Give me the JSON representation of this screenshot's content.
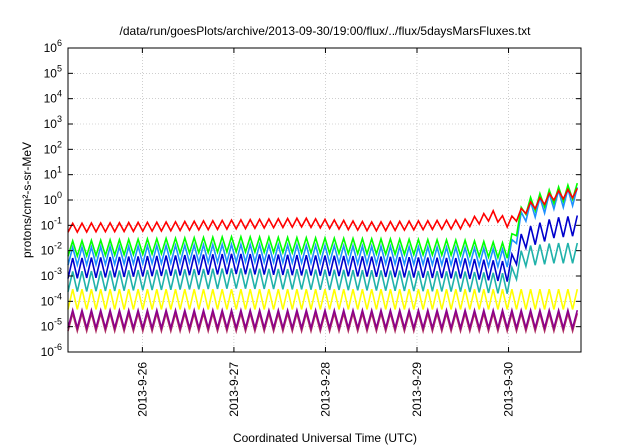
{
  "chart_data": {
    "type": "line",
    "title": "/data/run/goesPlots/archive/2013-09-30/19:00/flux/../flux/5daysMarsFluxes.txt",
    "xlabel": "Coordinated Universal Time (UTC)",
    "ylabel": "protons/cm²-s-sr-MeV",
    "y_scale": "log",
    "ylim": [
      1e-06,
      1000000.0
    ],
    "y_ticks": [
      {
        "value": 1e-06,
        "base": "10",
        "exp": "-6"
      },
      {
        "value": 1e-05,
        "base": "10",
        "exp": "-5"
      },
      {
        "value": 0.0001,
        "base": "10",
        "exp": "-4"
      },
      {
        "value": 0.001,
        "base": "10",
        "exp": "-3"
      },
      {
        "value": 0.01,
        "base": "10",
        "exp": "-2"
      },
      {
        "value": 0.1,
        "base": "10",
        "exp": "-1"
      },
      {
        "value": 1.0,
        "base": "10",
        "exp": "0"
      },
      {
        "value": 10.0,
        "base": "10",
        "exp": "1"
      },
      {
        "value": 100.0,
        "base": "10",
        "exp": "2"
      },
      {
        "value": 1000.0,
        "base": "10",
        "exp": "3"
      },
      {
        "value": 10000.0,
        "base": "10",
        "exp": "4"
      },
      {
        "value": 100000.0,
        "base": "10",
        "exp": "5"
      },
      {
        "value": 1000000.0,
        "base": "10",
        "exp": "6"
      }
    ],
    "xlim": [
      "2013-09-25T04:30",
      "2013-09-30T19:00"
    ],
    "x_ticks": [
      {
        "value": "2013-09-26T00:00",
        "label": "2013-9-26"
      },
      {
        "value": "2013-09-27T00:00",
        "label": "2013-9-27"
      },
      {
        "value": "2013-09-28T00:00",
        "label": "2013-9-28"
      },
      {
        "value": "2013-09-29T00:00",
        "label": "2013-9-29"
      },
      {
        "value": "2013-09-30T00:00",
        "label": "2013-9-30"
      }
    ],
    "grid": true,
    "sawtooth_period_hours": 2.45,
    "series": [
      {
        "color": "#ff0000",
        "baseline": [
          [
            "2013-09-25T04:30",
            0.08
          ],
          [
            "2013-09-26T06:00",
            0.09
          ],
          [
            "2013-09-27T18:00",
            0.13
          ],
          [
            "2013-09-28T12:00",
            0.09
          ],
          [
            "2013-09-29T12:00",
            0.11
          ],
          [
            "2013-09-29T20:00",
            0.25
          ],
          [
            "2013-09-30T00:00",
            0.12
          ],
          [
            "2013-09-30T05:00",
            0.5
          ],
          [
            "2013-09-30T12:00",
            1.5
          ],
          [
            "2013-09-30T19:00",
            2.0
          ]
        ],
        "amplitude_decades": 0.35
      },
      {
        "color": "#00ff00",
        "baseline": [
          [
            "2013-09-25T04:30",
            0.012
          ],
          [
            "2013-09-27T00:00",
            0.018
          ],
          [
            "2013-09-29T12:00",
            0.013
          ],
          [
            "2013-09-30T00:00",
            0.01
          ],
          [
            "2013-09-30T04:00",
            0.5
          ],
          [
            "2013-09-30T12:00",
            1.5
          ],
          [
            "2013-09-30T19:00",
            2.5
          ]
        ],
        "amplitude_decades": 0.6
      },
      {
        "color": "#1e90ff",
        "baseline": [
          [
            "2013-09-25T04:30",
            0.006
          ],
          [
            "2013-09-27T00:00",
            0.008
          ],
          [
            "2013-09-29T12:00",
            0.006
          ],
          [
            "2013-09-30T00:00",
            0.005
          ],
          [
            "2013-09-30T04:00",
            0.3
          ],
          [
            "2013-09-30T12:00",
            1.0
          ],
          [
            "2013-09-30T19:00",
            1.5
          ]
        ],
        "amplitude_decades": 0.7
      },
      {
        "color": "#0000cd",
        "baseline": [
          [
            "2013-09-25T04:30",
            0.002
          ],
          [
            "2013-09-27T00:00",
            0.003
          ],
          [
            "2013-09-29T12:00",
            0.002
          ],
          [
            "2013-09-30T00:00",
            0.0015
          ],
          [
            "2013-09-30T04:00",
            0.03
          ],
          [
            "2013-09-30T12:00",
            0.08
          ],
          [
            "2013-09-30T19:00",
            0.1
          ]
        ],
        "amplitude_decades": 0.8
      },
      {
        "color": "#20b2aa",
        "baseline": [
          [
            "2013-09-25T04:30",
            0.0006
          ],
          [
            "2013-09-27T00:00",
            0.0008
          ],
          [
            "2013-09-29T12:00",
            0.0006
          ],
          [
            "2013-09-30T00:00",
            0.0005
          ],
          [
            "2013-09-30T04:00",
            0.006
          ],
          [
            "2013-09-30T12:00",
            0.008
          ],
          [
            "2013-09-30T19:00",
            0.008
          ]
        ],
        "amplitude_decades": 0.8
      },
      {
        "color": "#ffff00",
        "baseline": [
          [
            "2013-09-25T04:30",
            0.00012
          ],
          [
            "2013-09-30T19:00",
            0.00012
          ]
        ],
        "amplitude_decades": 0.8
      },
      {
        "color": "#8b008b",
        "baseline": [
          [
            "2013-09-25T04:30",
            2e-05
          ],
          [
            "2013-09-30T19:00",
            2e-05
          ]
        ],
        "amplitude_decades": 0.7
      },
      {
        "color": "#b03060",
        "baseline": [
          [
            "2013-09-25T04:30",
            1.5e-05
          ],
          [
            "2013-09-30T19:00",
            1.5e-05
          ]
        ],
        "amplitude_decades": 0.7
      }
    ]
  }
}
